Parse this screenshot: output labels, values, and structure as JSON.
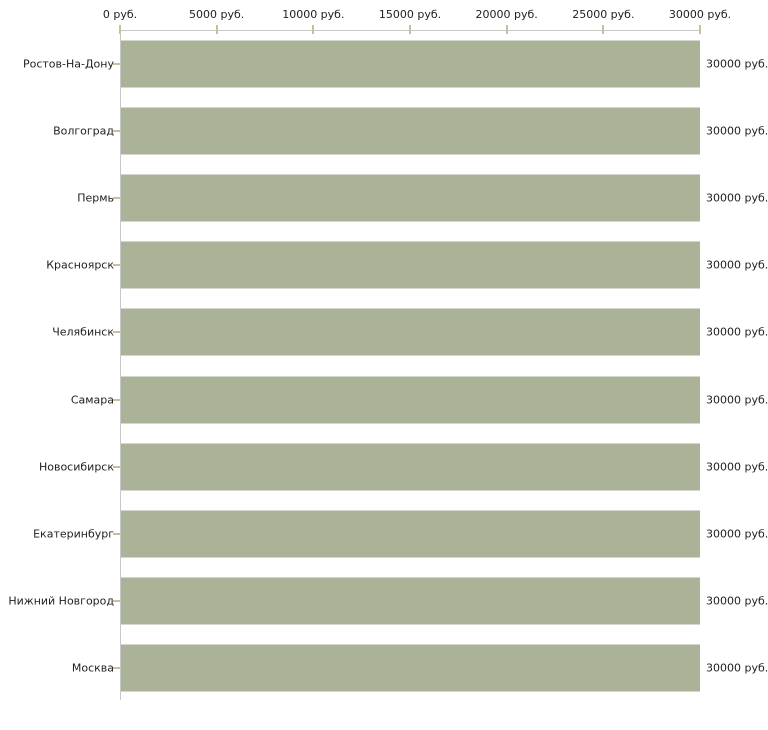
{
  "chart_data": {
    "type": "bar",
    "orientation": "horizontal",
    "title": "",
    "xlabel": "",
    "ylabel": "",
    "categories": [
      "Ростов-На-Дону",
      "Волгоград",
      "Пермь",
      "Красноярск",
      "Челябинск",
      "Самара",
      "Новосибирск",
      "Екатеринбург",
      "Нижний Новгород",
      "Москва"
    ],
    "values": [
      30000,
      30000,
      30000,
      30000,
      30000,
      30000,
      30000,
      30000,
      30000,
      30000
    ],
    "bar_labels": [
      "30000 руб.",
      "30000 руб.",
      "30000 руб.",
      "30000 руб.",
      "30000 руб.",
      "30000 руб.",
      "30000 руб.",
      "30000 руб.",
      "30000 руб.",
      "30000 руб."
    ],
    "x_axis": {
      "position": "top",
      "min": 0,
      "max": 30000,
      "ticks": [
        0,
        5000,
        10000,
        15000,
        20000,
        25000,
        30000
      ],
      "tick_labels": [
        "0 руб.",
        "5000 руб.",
        "10000 руб.",
        "15000 руб.",
        "20000 руб.",
        "25000 руб.",
        "30000 руб."
      ]
    },
    "grid": false,
    "legend": false,
    "colors": {
      "bar": "#aab298",
      "axis_line": "#c8c8c8",
      "tick_mark": "#c2c29e",
      "text": "#1f1f1f",
      "background": "#ffffff"
    }
  }
}
